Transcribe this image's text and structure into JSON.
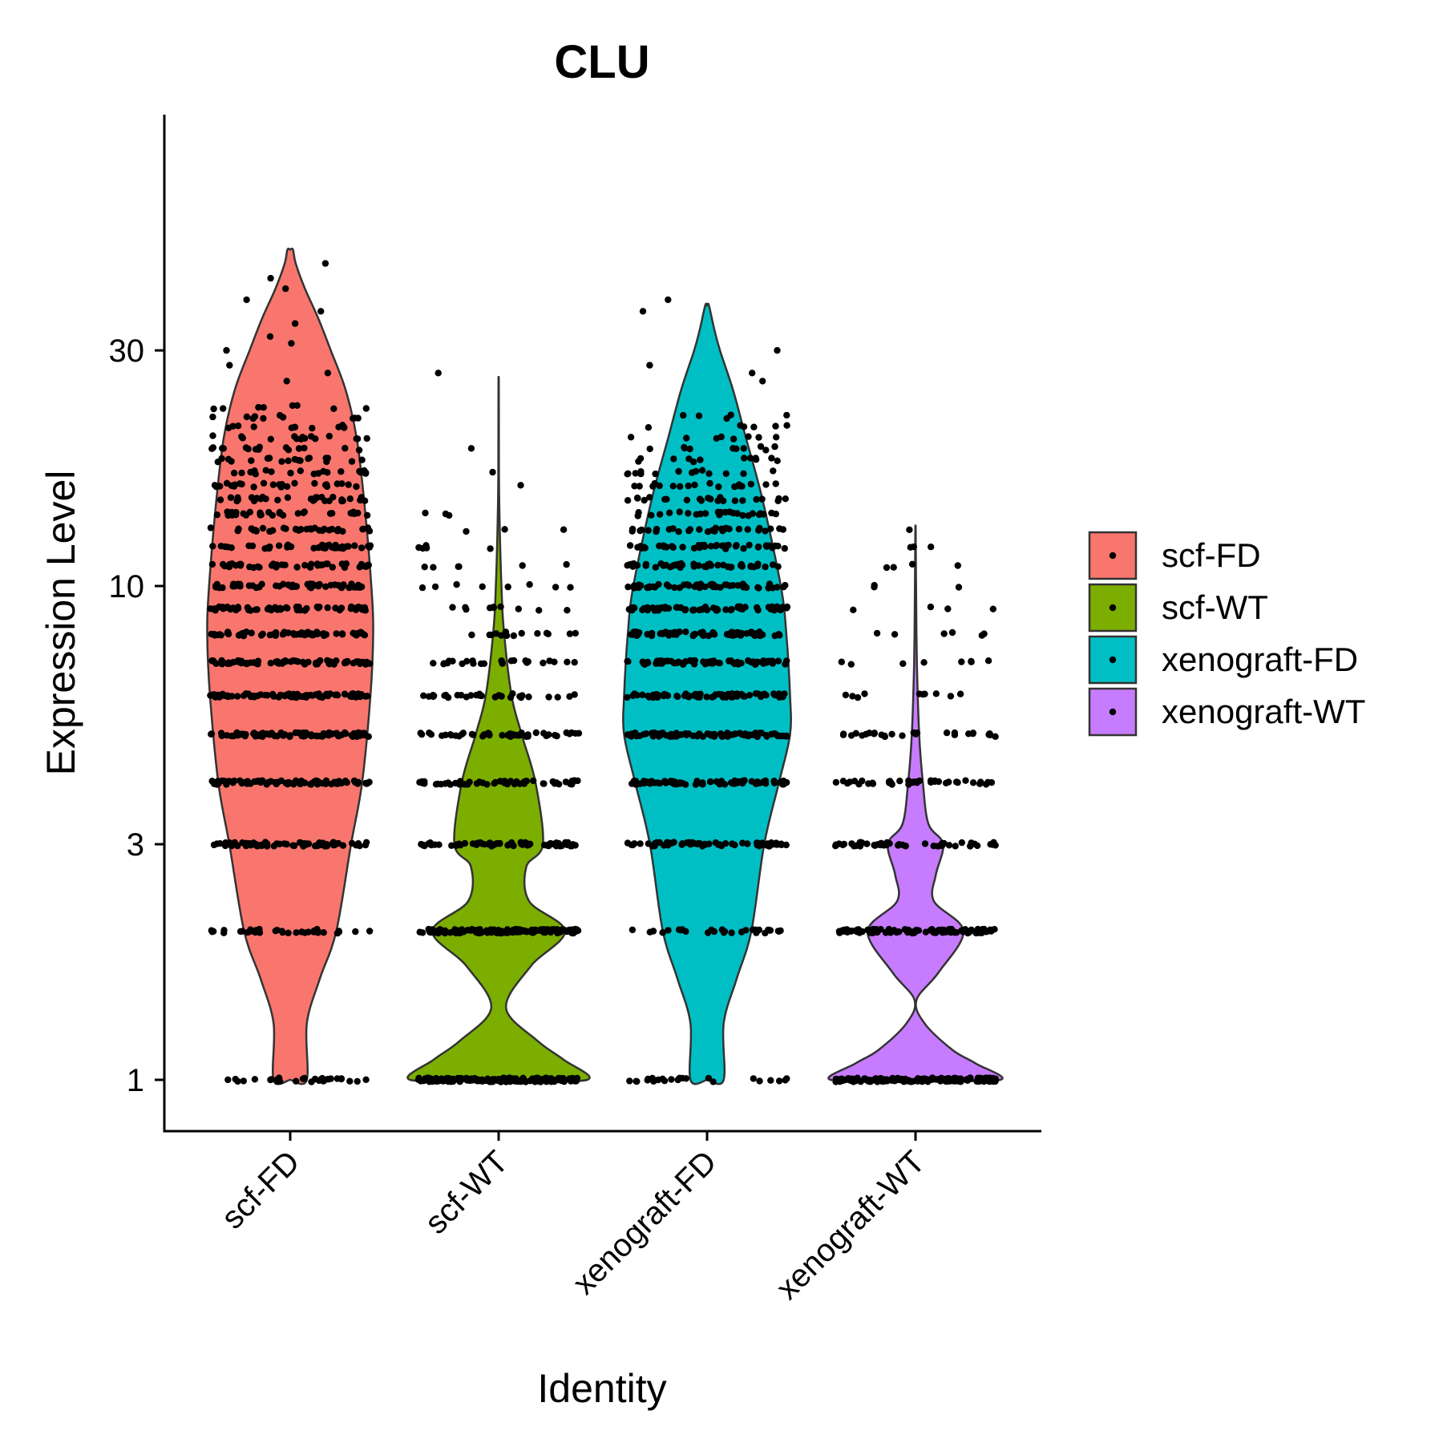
{
  "chart_data": {
    "type": "violin",
    "title": "CLU",
    "xlabel": "Identity",
    "ylabel": "Expression Level",
    "yscale": "log",
    "ylim": [
      0.85,
      55
    ],
    "yticks": [
      1,
      3,
      10,
      30
    ],
    "ytick_labels": [
      "1",
      "3",
      "10",
      "30"
    ],
    "categories": [
      "scf-FD",
      "scf-WT",
      "xenograft-FD",
      "xenograft-WT"
    ],
    "legend": {
      "position": "right",
      "entries": [
        "scf-FD",
        "scf-WT",
        "xenograft-FD",
        "xenograft-WT"
      ]
    },
    "grid": false,
    "series": [
      {
        "name": "scf-FD",
        "color": "#F8766D",
        "range": [
          1,
          48
        ],
        "density_profile": [
          [
            1,
            0.18
          ],
          [
            1.3,
            0.18
          ],
          [
            1.6,
            0.32
          ],
          [
            2,
            0.5
          ],
          [
            3,
            0.66
          ],
          [
            4,
            0.78
          ],
          [
            6,
            0.87
          ],
          [
            8,
            0.9
          ],
          [
            10,
            0.88
          ],
          [
            15,
            0.8
          ],
          [
            20,
            0.72
          ],
          [
            25,
            0.6
          ],
          [
            30,
            0.44
          ],
          [
            35,
            0.3
          ],
          [
            40,
            0.16
          ],
          [
            45,
            0.06
          ],
          [
            48,
            0.03
          ]
        ],
        "dot_counts": [
          [
            1,
            30
          ],
          [
            2,
            35
          ],
          [
            3,
            70
          ],
          [
            4,
            80
          ],
          [
            5,
            90
          ],
          [
            6,
            80
          ],
          [
            7,
            70
          ],
          [
            8,
            65
          ],
          [
            9,
            60
          ],
          [
            10,
            55
          ],
          [
            11,
            45
          ],
          [
            12,
            40
          ],
          [
            13,
            35
          ],
          [
            14,
            30
          ],
          [
            15,
            30
          ],
          [
            16,
            25
          ],
          [
            17,
            20
          ],
          [
            18,
            20
          ],
          [
            19,
            15
          ],
          [
            20,
            15
          ],
          [
            21,
            12
          ],
          [
            22,
            10
          ],
          [
            23,
            8
          ]
        ],
        "outliers": [
          45,
          42,
          40,
          38,
          36,
          34,
          32,
          31,
          30,
          28,
          27,
          26
        ]
      },
      {
        "name": "scf-WT",
        "color": "#7CAE00",
        "range": [
          1,
          26
        ],
        "density_profile": [
          [
            1,
            0.96
          ],
          [
            1.1,
            0.7
          ],
          [
            1.2,
            0.42
          ],
          [
            1.4,
            0.08
          ],
          [
            1.7,
            0.35
          ],
          [
            2,
            0.72
          ],
          [
            2.3,
            0.33
          ],
          [
            2.7,
            0.3
          ],
          [
            3,
            0.48
          ],
          [
            4,
            0.4
          ],
          [
            5,
            0.25
          ],
          [
            6,
            0.14
          ],
          [
            8,
            0.06
          ],
          [
            10,
            0.03
          ],
          [
            15,
            0.006
          ],
          [
            20,
            0.003
          ],
          [
            26,
            0.002
          ]
        ],
        "dot_counts": [
          [
            1,
            170
          ],
          [
            2,
            140
          ],
          [
            3,
            70
          ],
          [
            4,
            55
          ],
          [
            5,
            45
          ],
          [
            6,
            30
          ],
          [
            7,
            25
          ],
          [
            8,
            14
          ],
          [
            9,
            10
          ],
          [
            10,
            8
          ],
          [
            11,
            6
          ],
          [
            12,
            5
          ],
          [
            13,
            3
          ],
          [
            14,
            2
          ]
        ],
        "outliers": [
          27,
          19,
          17,
          16,
          14
        ]
      },
      {
        "name": "xenograft-FD",
        "color": "#00BFC4",
        "range": [
          1,
          37
        ],
        "density_profile": [
          [
            1,
            0.18
          ],
          [
            1.3,
            0.18
          ],
          [
            1.6,
            0.32
          ],
          [
            2,
            0.48
          ],
          [
            3,
            0.62
          ],
          [
            4,
            0.78
          ],
          [
            5,
            0.9
          ],
          [
            6,
            0.9
          ],
          [
            8,
            0.86
          ],
          [
            10,
            0.8
          ],
          [
            15,
            0.6
          ],
          [
            20,
            0.42
          ],
          [
            25,
            0.28
          ],
          [
            30,
            0.14
          ],
          [
            33,
            0.08
          ],
          [
            37,
            0.02
          ]
        ],
        "dot_counts": [
          [
            1,
            25
          ],
          [
            2,
            30
          ],
          [
            3,
            65
          ],
          [
            4,
            75
          ],
          [
            5,
            85
          ],
          [
            6,
            75
          ],
          [
            7,
            70
          ],
          [
            8,
            65
          ],
          [
            9,
            60
          ],
          [
            10,
            55
          ],
          [
            11,
            45
          ],
          [
            12,
            40
          ],
          [
            13,
            30
          ],
          [
            14,
            25
          ],
          [
            15,
            22
          ],
          [
            16,
            18
          ],
          [
            17,
            14
          ],
          [
            18,
            12
          ],
          [
            19,
            10
          ],
          [
            20,
            8
          ],
          [
            21,
            6
          ],
          [
            22,
            5
          ]
        ],
        "outliers": [
          38,
          36,
          30,
          28,
          27,
          26
        ]
      },
      {
        "name": "xenograft-WT",
        "color": "#C77CFF",
        "range": [
          1,
          13
        ],
        "density_profile": [
          [
            1,
            0.92
          ],
          [
            1.08,
            0.65
          ],
          [
            1.15,
            0.4
          ],
          [
            1.3,
            0.1
          ],
          [
            1.45,
            0.01
          ],
          [
            1.65,
            0.25
          ],
          [
            2,
            0.52
          ],
          [
            2.3,
            0.2
          ],
          [
            2.6,
            0.22
          ],
          [
            3,
            0.3
          ],
          [
            3.3,
            0.14
          ],
          [
            4,
            0.08
          ],
          [
            5,
            0.04
          ],
          [
            7,
            0.015
          ],
          [
            10,
            0.006
          ],
          [
            13,
            0.002
          ]
        ],
        "dot_counts": [
          [
            1,
            160
          ],
          [
            2,
            115
          ],
          [
            3,
            55
          ],
          [
            4,
            40
          ],
          [
            5,
            30
          ],
          [
            6,
            10
          ],
          [
            7,
            8
          ],
          [
            8,
            6
          ],
          [
            9,
            4
          ],
          [
            10,
            3
          ],
          [
            11,
            3
          ],
          [
            12,
            2
          ]
        ],
        "outliers": [
          13,
          12,
          11
        ]
      }
    ]
  }
}
